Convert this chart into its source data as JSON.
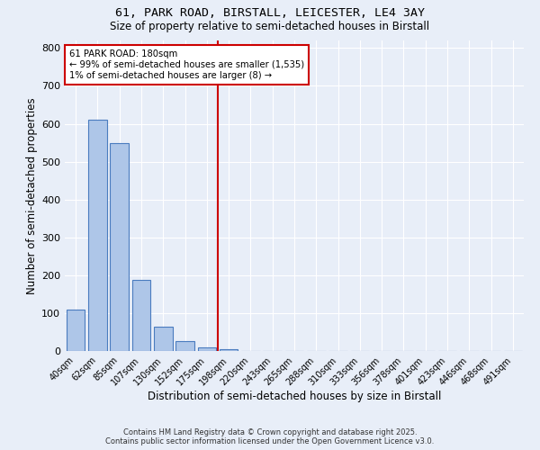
{
  "title1": "61, PARK ROAD, BIRSTALL, LEICESTER, LE4 3AY",
  "title2": "Size of property relative to semi-detached houses in Birstall",
  "xlabel": "Distribution of semi-detached houses by size in Birstall",
  "ylabel": "Number of semi-detached properties",
  "bar_labels": [
    "40sqm",
    "62sqm",
    "85sqm",
    "107sqm",
    "130sqm",
    "152sqm",
    "175sqm",
    "198sqm",
    "220sqm",
    "243sqm",
    "265sqm",
    "288sqm",
    "310sqm",
    "333sqm",
    "356sqm",
    "378sqm",
    "401sqm",
    "423sqm",
    "446sqm",
    "468sqm",
    "491sqm"
  ],
  "bar_values": [
    110,
    612,
    549,
    188,
    63,
    27,
    10,
    5,
    0,
    0,
    0,
    0,
    0,
    0,
    0,
    0,
    0,
    0,
    0,
    0,
    0
  ],
  "bar_color": "#aec6e8",
  "bar_edge_color": "#4a7cbf",
  "background_color": "#e8eef8",
  "grid_color": "#ffffff",
  "highlight_line_color": "#cc0000",
  "ylim": [
    0,
    820
  ],
  "yticks": [
    0,
    100,
    200,
    300,
    400,
    500,
    600,
    700,
    800
  ],
  "annotation_title": "61 PARK ROAD: 180sqm",
  "annotation_line1": "← 99% of semi-detached houses are smaller (1,535)",
  "annotation_line2": "1% of semi-detached houses are larger (8) →",
  "annotation_box_color": "#ffffff",
  "annotation_box_edge": "#cc0000",
  "footer1": "Contains HM Land Registry data © Crown copyright and database right 2025.",
  "footer2": "Contains public sector information licensed under the Open Government Licence v3.0."
}
